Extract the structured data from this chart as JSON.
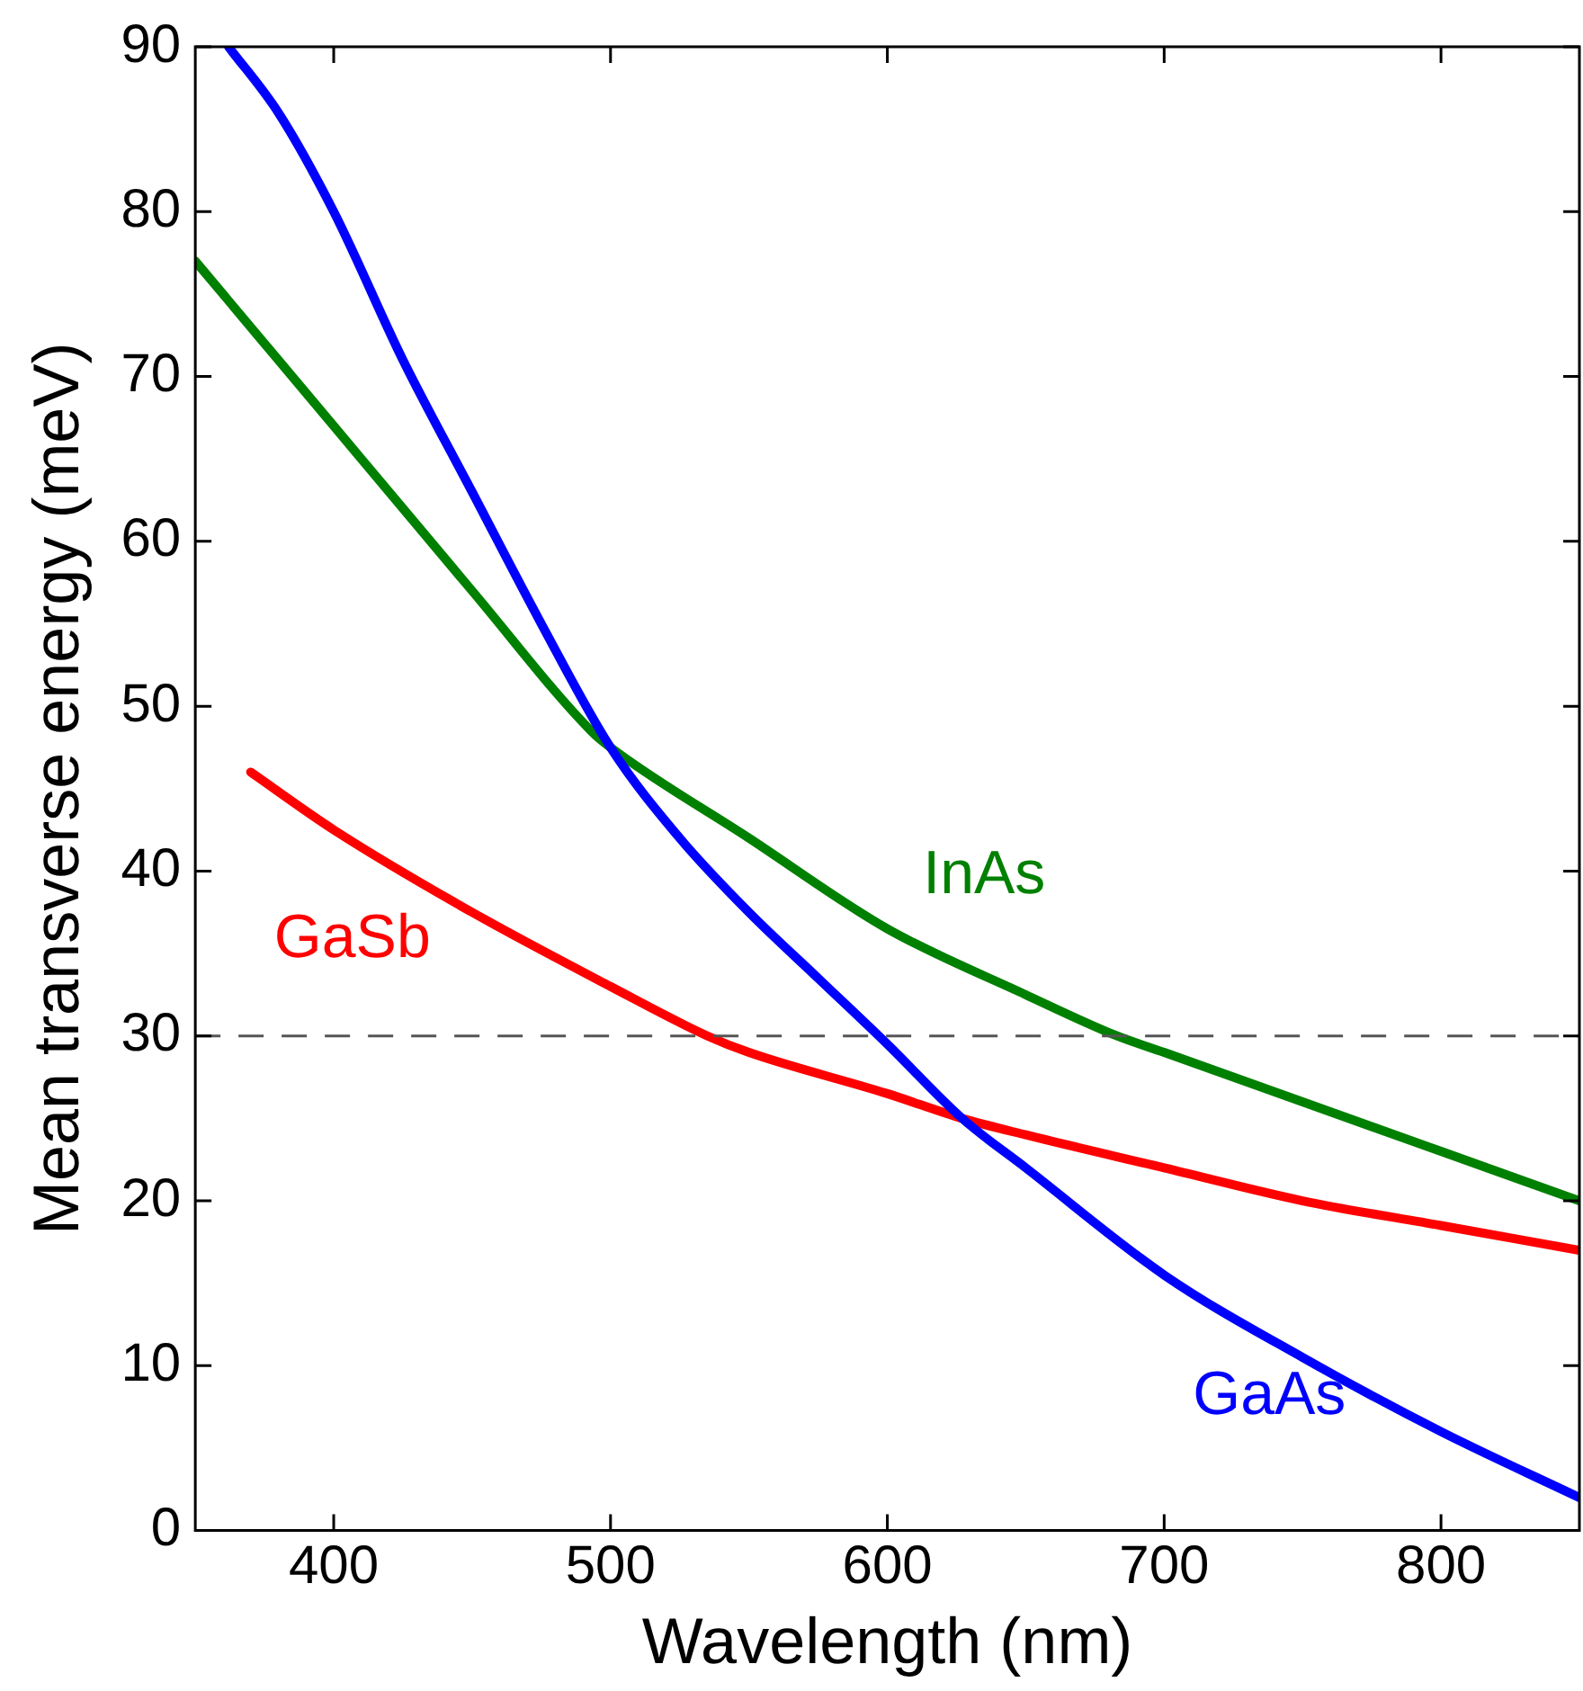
{
  "chart_data": {
    "type": "line",
    "xlabel": "Wavelength (nm)",
    "ylabel": "Mean transverse energy (meV)",
    "xlim": [
      350,
      850
    ],
    "xticks": [
      400,
      500,
      600,
      700,
      800
    ],
    "ylim": [
      0,
      90
    ],
    "yticks": [
      0,
      10,
      20,
      30,
      40,
      50,
      60,
      70,
      80,
      90
    ],
    "grid": false,
    "legend": false,
    "series": [
      {
        "name": "GaAs",
        "color": "#0000ff",
        "x": [
          362,
          380,
          400,
          425,
          450,
          475,
          500,
          525,
          550,
          575,
          600,
          627,
          650,
          700,
          750,
          800,
          850
        ],
        "values": [
          90,
          86,
          80,
          71,
          63,
          55,
          47.5,
          42,
          37.5,
          33.5,
          29.5,
          25,
          22,
          15.5,
          10.5,
          6,
          2
        ]
      },
      {
        "name": "GaSb",
        "color": "#ff0000",
        "x": [
          370,
          400,
          450,
          500,
          535,
          550,
          600,
          627,
          650,
          700,
          750,
          800,
          850
        ],
        "values": [
          46,
          42.5,
          37.5,
          33,
          30,
          29,
          26.5,
          25,
          24,
          22,
          20,
          18.5,
          17
        ]
      },
      {
        "name": "InAs",
        "color": "#008000",
        "x": [
          350,
          375,
          400,
          450,
          493,
          500,
          550,
          600,
          650,
          683,
          700,
          750,
          800,
          850
        ],
        "values": [
          77,
          72,
          67,
          57,
          48.5,
          47.5,
          42,
          36.5,
          32.5,
          30,
          29,
          26,
          23,
          20
        ]
      }
    ],
    "ref_lines": [
      {
        "axis": "y",
        "value": 30,
        "color": "#555555",
        "line_style": "dashed"
      }
    ]
  }
}
